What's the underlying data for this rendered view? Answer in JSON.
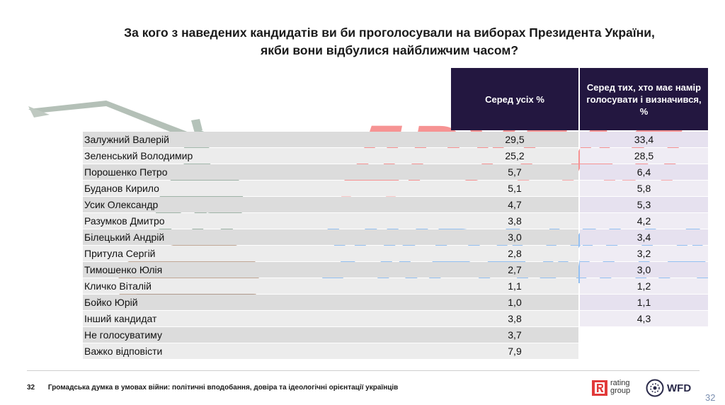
{
  "title_line1": "За кого з наведених кандидатів ви би проголосували на виборах Президента України,",
  "title_line2": "якби вони відбулися найближчим часом?",
  "columns": {
    "col1": "Серед усіх %",
    "col2": "Серед тих, хто має намір голосувати і визначився, %"
  },
  "rows": [
    {
      "name": "Залужний Валерій",
      "all": "29,5",
      "decided": "33,4"
    },
    {
      "name": "Зеленський Володимир",
      "all": "25,2",
      "decided": "28,5"
    },
    {
      "name": "Порошенко Петро",
      "all": "5,7",
      "decided": "6,4"
    },
    {
      "name": "Буданов Кирило",
      "all": "5,1",
      "decided": "5,8"
    },
    {
      "name": "Усик Олександр",
      "all": "4,7",
      "decided": "5,3"
    },
    {
      "name": "Разумков Дмитро",
      "all": "3,8",
      "decided": "4,2"
    },
    {
      "name": "Білецький Андрій",
      "all": "3,0",
      "decided": "3,4"
    },
    {
      "name": "Притула Сергій",
      "all": "2,8",
      "decided": "3,2"
    },
    {
      "name": "Тимошенко Юлія",
      "all": "2,7",
      "decided": "3,0"
    },
    {
      "name": "Кличко Віталій",
      "all": "1,1",
      "decided": "1,2"
    },
    {
      "name": "Бойко Юрій",
      "all": "1,0",
      "decided": "1,1"
    },
    {
      "name": "Інший кандидат",
      "all": "3,8",
      "decided": "4,3"
    },
    {
      "name": "Не голосуватиму",
      "all": "3,7",
      "decided": ""
    },
    {
      "name": "Важко відповісти",
      "all": "7,9",
      "decided": ""
    }
  ],
  "watermark": {
    "line1": "ДРУГАЯ",
    "line2": "УКРАИНА",
    "color1": "#ef3b3b",
    "color2": "#2a84e6"
  },
  "footer": {
    "page_left": "32",
    "text": "Громадська думка в умовах війни: політичні вподобання, довіра та ідеологічні орієнтації українців",
    "logo_rating": "rating",
    "logo_group": "group",
    "logo_wfd": "WFD",
    "page_right": "32"
  },
  "colors": {
    "header_bg": "#231740",
    "accent": "#e13a3a"
  }
}
